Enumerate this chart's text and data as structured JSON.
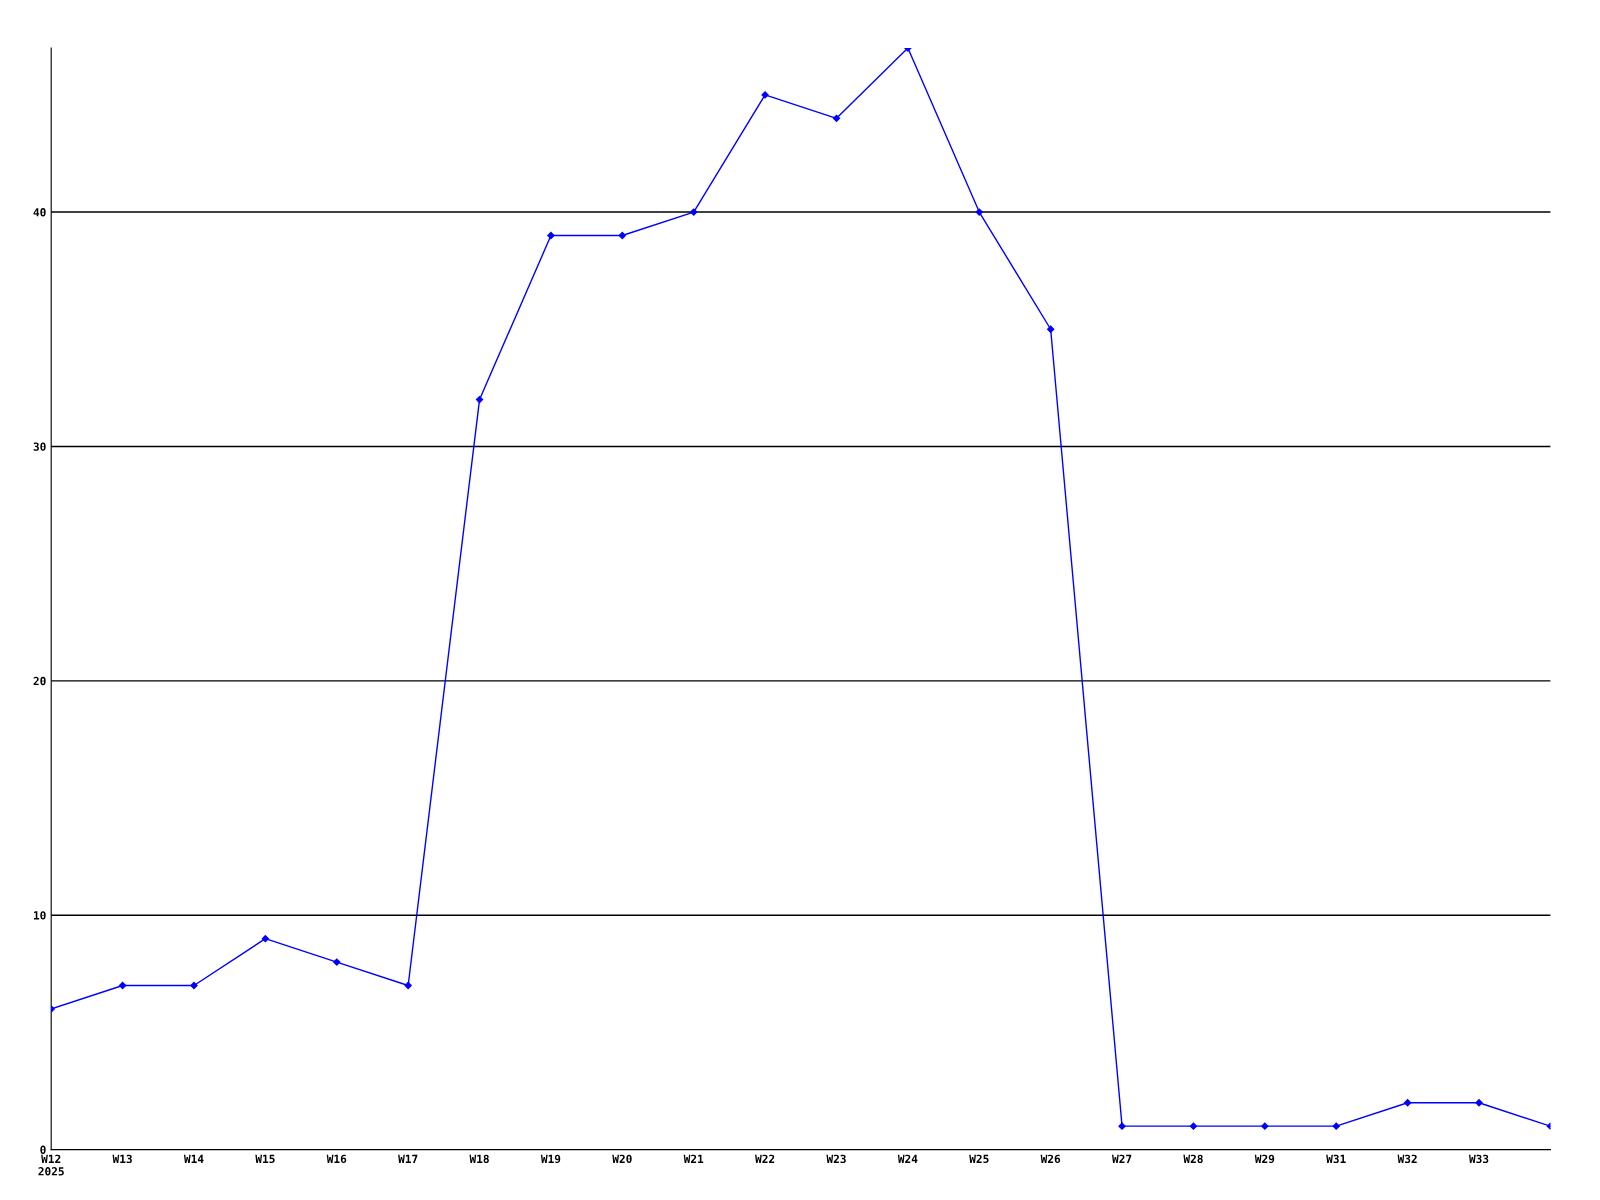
{
  "chart_data": {
    "type": "line",
    "categories": [
      "W12\n2025",
      "W13",
      "W14",
      "W15",
      "W16",
      "W17",
      "W18",
      "W19",
      "W20",
      "W21",
      "W22",
      "W23",
      "W24",
      "W25",
      "W26",
      "W27",
      "W28",
      "W29",
      "W31",
      "W32",
      "W33",
      null
    ],
    "series": [
      {
        "color": "#0000ff",
        "values": [
          6,
          7,
          7,
          9,
          8,
          7,
          32,
          39,
          39,
          40,
          45,
          44,
          47,
          40,
          35,
          1,
          1,
          1,
          1,
          2,
          2,
          1
        ]
      }
    ],
    "ylim": [
      0,
      47
    ],
    "yticks": [
      0,
      10,
      20,
      30,
      40
    ],
    "grid": "y",
    "marker": "diamond",
    "line_style": "solid"
  }
}
